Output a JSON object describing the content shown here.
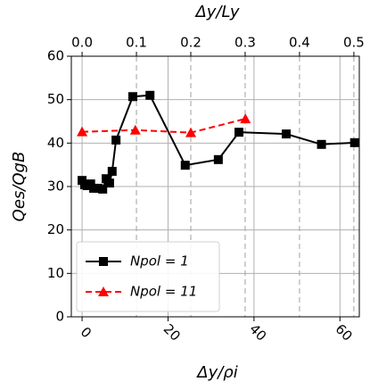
{
  "chart_data": {
    "type": "line",
    "xlabel": "Δy/ρi",
    "ylabel": "Qes/QgB",
    "x2label": "Δy/Ly",
    "xlim": [
      -2.5,
      64.5
    ],
    "xticks": [
      0,
      20,
      40,
      60
    ],
    "x2lim": [
      -0.0198,
      0.51
    ],
    "x2ticks": [
      {
        "value": 0,
        "label": "0.0"
      },
      0.1,
      0.2,
      0.3,
      0.4,
      0.5
    ],
    "ylim": [
      0,
      60
    ],
    "yticks": [
      0,
      10,
      20,
      30,
      40,
      50,
      60
    ],
    "grid": true,
    "legend": "lower left",
    "series": [
      {
        "name": "Npol = 1",
        "color": "#000000",
        "marker": "square",
        "dash": false,
        "x": [
          0,
          0.6,
          1.2,
          2,
          2.7,
          3.7,
          4.8,
          5.6,
          6.4,
          7.0,
          7.9,
          11.8,
          15.8,
          24,
          31.7,
          36.5,
          47.5,
          55.7,
          63.4
        ],
        "values": [
          31.4,
          30.4,
          30.2,
          30.6,
          29.6,
          29.6,
          29.4,
          31.8,
          30.8,
          33.5,
          40.7,
          50.7,
          51.0,
          34.9,
          36.2,
          42.5,
          42.1,
          39.7,
          40.1
        ]
      },
      {
        "name": "Npol = 11",
        "color": "#ff0000",
        "marker": "triangle",
        "dash": true,
        "x": [
          0,
          12.4,
          25.3,
          38
        ],
        "values": [
          42.6,
          43,
          42.4,
          45.6
        ]
      }
    ]
  }
}
